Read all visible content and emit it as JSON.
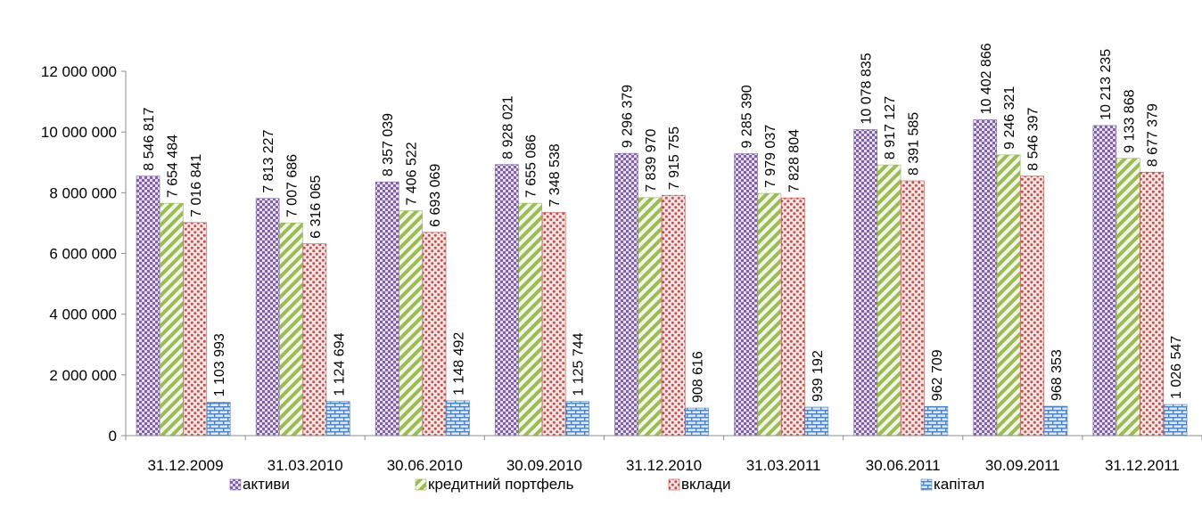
{
  "chart_data": {
    "type": "bar",
    "title": "",
    "xlabel": "",
    "ylabel": "",
    "ylim": [
      0,
      12000000
    ],
    "yticks": [
      0,
      2000000,
      4000000,
      6000000,
      8000000,
      10000000,
      12000000
    ],
    "ytick_labels": [
      "0",
      "2 000 000",
      "4 000 000",
      "6 000 000",
      "8 000 000",
      "10 000 000",
      "12 000 000"
    ],
    "grid": false,
    "legend_position": "bottom",
    "categories": [
      "31.12.2009",
      "31.03.2010",
      "30.06.2010",
      "30.09.2010",
      "31.12.2010",
      "31.03.2011",
      "30.06.2011",
      "30.09.2011",
      "31.12.2011"
    ],
    "series": [
      {
        "name": "активи",
        "color": "#8064a2",
        "pattern": "checker",
        "values": [
          8546817,
          7813227,
          8357039,
          8928021,
          9296379,
          9285390,
          10078835,
          10402866,
          10213235
        ],
        "labels": [
          "8 546 817",
          "7 813 227",
          "8 357 039",
          "8 928 021",
          "9 296 379",
          "9 285 390",
          "10 078 835",
          "10 402 866",
          "10 213 235"
        ]
      },
      {
        "name": "кредитний портфель",
        "color": "#9bbb59",
        "pattern": "diagonal-stripes",
        "values": [
          7654484,
          7007686,
          7406522,
          7655086,
          7839970,
          7979037,
          8917127,
          9246321,
          9133868
        ],
        "labels": [
          "7 654 484",
          "7 007 686",
          "7 406 522",
          "7 655 086",
          "7 839 970",
          "7 979 037",
          "8 917 127",
          "9 246 321",
          "9 133 868"
        ]
      },
      {
        "name": "вклади",
        "color": "#c0504d",
        "pattern": "dots",
        "values": [
          7016841,
          6316065,
          6693069,
          7348538,
          7915755,
          7828804,
          8391585,
          8546397,
          8677379
        ],
        "labels": [
          "7 016 841",
          "6 316 065",
          "6 693 069",
          "7 348 538",
          "7 915 755",
          "7 828 804",
          "8 391 585",
          "8 546 397",
          "8 677 379"
        ]
      },
      {
        "name": "капітал",
        "color": "#4f81bd",
        "pattern": "bricks",
        "values": [
          1103993,
          1124694,
          1148492,
          1125744,
          908616,
          939192,
          962709,
          968353,
          1026547
        ],
        "labels": [
          "1 103 993",
          "1 124 694",
          "1 148 492",
          "1 125 744",
          "908 616",
          "939 192",
          "962 709",
          "968 353",
          "1 026 547"
        ]
      }
    ]
  }
}
